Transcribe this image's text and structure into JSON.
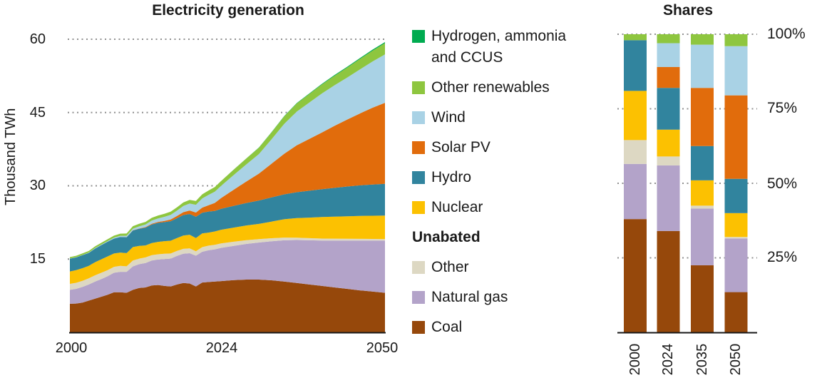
{
  "page": {
    "background": "#ffffff"
  },
  "colors": {
    "coal": "#96480b",
    "natural_gas": "#b3a3c9",
    "other": "#ddd8c3",
    "nuclear": "#fcc101",
    "hydro": "#31849e",
    "solar_pv": "#e16c0c",
    "wind": "#a9d2e5",
    "other_renewables": "#8ec63f",
    "hydrogen": "#00ab50",
    "gridline": "#909090",
    "axis": "#1a1a1a",
    "text": "#1a1a1a"
  },
  "charts": {
    "generation": {
      "title": "Electricity generation",
      "y_axis_label": "Thousand TWh",
      "y_ticks": [
        "60",
        "45",
        "30",
        "15"
      ],
      "x_ticks": [
        "2000",
        "2024",
        "2050"
      ]
    },
    "shares": {
      "title": "Shares",
      "y_ticks": [
        "100%",
        "75%",
        "50%",
        "25%"
      ],
      "x_ticks": [
        "2000",
        "2024",
        "2035",
        "2050"
      ]
    }
  },
  "legend": {
    "items": [
      {
        "label": "Hydrogen, ammonia and CCUS",
        "color": "hydrogen"
      },
      {
        "label": "Other renewables",
        "color": "other_renewables"
      },
      {
        "label": "Wind",
        "color": "wind"
      },
      {
        "label": "Solar PV",
        "color": "solar_pv"
      },
      {
        "label": "Hydro",
        "color": "hydro"
      },
      {
        "label": "Nuclear",
        "color": "nuclear"
      },
      {
        "label": "Unabated",
        "header": true
      },
      {
        "label": "Other",
        "color": "other"
      },
      {
        "label": "Natural gas",
        "color": "natural_gas"
      },
      {
        "label": "Coal",
        "color": "coal"
      }
    ]
  },
  "chart_data": [
    {
      "type": "area",
      "stacked": true,
      "title": "Electricity generation",
      "ylabel": "Thousand TWh",
      "ylim": [
        0,
        60
      ],
      "xlim": [
        2000,
        2050
      ],
      "grid": "dotted-horizontal",
      "x": [
        2000,
        2001,
        2002,
        2003,
        2004,
        2005,
        2006,
        2007,
        2008,
        2009,
        2010,
        2011,
        2012,
        2013,
        2014,
        2015,
        2016,
        2017,
        2018,
        2019,
        2020,
        2021,
        2022,
        2023,
        2024,
        2026,
        2028,
        2030,
        2032,
        2034,
        2036,
        2038,
        2040,
        2042,
        2044,
        2046,
        2048,
        2050
      ],
      "series": [
        {
          "name": "Coal",
          "color": "coal",
          "values": [
            5.85,
            5.9,
            6.1,
            6.5,
            6.9,
            7.3,
            7.7,
            8.2,
            8.2,
            8.1,
            8.7,
            9.1,
            9.2,
            9.6,
            9.7,
            9.5,
            9.4,
            9.8,
            10.1,
            10.0,
            9.4,
            10.2,
            10.3,
            10.4,
            10.5,
            10.7,
            10.8,
            10.8,
            10.65,
            10.4,
            10.1,
            9.8,
            9.5,
            9.2,
            8.9,
            8.6,
            8.35,
            8.1
          ]
        },
        {
          "name": "Natural gas",
          "color": "natural_gas",
          "values": [
            2.85,
            3.0,
            3.2,
            3.3,
            3.5,
            3.6,
            3.8,
            4.0,
            4.2,
            4.3,
            4.8,
            4.85,
            5.0,
            5.1,
            5.2,
            5.5,
            5.7,
            5.85,
            6.0,
            6.2,
            6.3,
            6.3,
            6.5,
            6.6,
            6.8,
            7.0,
            7.3,
            7.6,
            8.0,
            8.45,
            8.8,
            9.05,
            9.3,
            9.6,
            9.9,
            10.2,
            10.45,
            10.7
          ]
        },
        {
          "name": "Other",
          "color": "other",
          "values": [
            1.23,
            1.25,
            1.24,
            1.26,
            1.28,
            1.3,
            1.25,
            1.22,
            1.2,
            1.12,
            1.2,
            1.15,
            1.14,
            1.1,
            1.08,
            1.1,
            1.05,
            1.03,
            1.0,
            0.98,
            0.92,
            0.95,
            0.95,
            0.92,
            0.9,
            0.85,
            0.78,
            0.7,
            0.62,
            0.55,
            0.48,
            0.44,
            0.4,
            0.38,
            0.36,
            0.34,
            0.32,
            0.3
          ]
        },
        {
          "name": "Nuclear",
          "color": "nuclear",
          "values": [
            2.54,
            2.59,
            2.6,
            2.56,
            2.68,
            2.77,
            2.8,
            2.73,
            2.73,
            2.7,
            2.76,
            2.6,
            2.46,
            2.49,
            2.54,
            2.57,
            2.61,
            2.64,
            2.71,
            2.8,
            2.7,
            2.8,
            2.68,
            2.74,
            2.8,
            2.9,
            3.0,
            3.1,
            3.4,
            3.75,
            4.0,
            4.2,
            4.4,
            4.5,
            4.6,
            4.7,
            4.75,
            4.8
          ]
        },
        {
          "name": "Hydro",
          "color": "hydro",
          "values": [
            2.62,
            2.6,
            2.65,
            2.65,
            2.8,
            2.9,
            3.0,
            3.05,
            3.2,
            3.25,
            3.4,
            3.5,
            3.65,
            3.8,
            3.9,
            3.9,
            4.0,
            4.05,
            4.2,
            4.25,
            4.35,
            4.25,
            4.3,
            4.2,
            4.3,
            4.45,
            4.6,
            4.8,
            4.95,
            5.1,
            5.3,
            5.5,
            5.7,
            5.9,
            6.1,
            6.25,
            6.4,
            6.5
          ]
        },
        {
          "name": "Solar PV",
          "color": "solar_pv",
          "values": [
            0,
            0,
            0,
            0,
            0,
            0,
            0,
            0,
            0.01,
            0.02,
            0.03,
            0.06,
            0.1,
            0.14,
            0.2,
            0.25,
            0.33,
            0.45,
            0.59,
            0.72,
            0.85,
            1.04,
            1.3,
            1.63,
            2.2,
            3.3,
            4.4,
            5.5,
            6.9,
            8.3,
            9.6,
            10.6,
            11.6,
            12.7,
            13.7,
            14.7,
            15.7,
            16.6
          ]
        },
        {
          "name": "Wind",
          "color": "wind",
          "values": [
            0.03,
            0.04,
            0.05,
            0.06,
            0.09,
            0.1,
            0.13,
            0.17,
            0.22,
            0.28,
            0.34,
            0.44,
            0.52,
            0.64,
            0.71,
            0.83,
            0.96,
            1.1,
            1.27,
            1.42,
            1.6,
            1.86,
            2.1,
            2.3,
            2.5,
            3.0,
            3.5,
            4.0,
            5.0,
            6.1,
            6.9,
            7.45,
            8.0,
            8.3,
            8.6,
            9.0,
            9.45,
            9.9
          ]
        },
        {
          "name": "Other renewables",
          "color": "other_renewables",
          "values": [
            0.28,
            0.3,
            0.32,
            0.33,
            0.35,
            0.37,
            0.39,
            0.42,
            0.44,
            0.47,
            0.5,
            0.52,
            0.55,
            0.58,
            0.6,
            0.62,
            0.65,
            0.68,
            0.72,
            0.75,
            0.78,
            0.85,
            0.9,
            0.95,
            1.0,
            1.1,
            1.2,
            1.3,
            1.42,
            1.55,
            1.66,
            1.76,
            1.85,
            1.95,
            2.04,
            2.13,
            2.22,
            2.3
          ]
        },
        {
          "name": "Hydrogen, ammonia and CCUS",
          "color": "hydrogen",
          "values": [
            0,
            0,
            0,
            0,
            0,
            0,
            0,
            0,
            0,
            0,
            0,
            0,
            0,
            0,
            0,
            0,
            0,
            0,
            0,
            0,
            0,
            0,
            0,
            0,
            0,
            0.01,
            0.02,
            0.04,
            0.05,
            0.07,
            0.09,
            0.11,
            0.13,
            0.15,
            0.17,
            0.19,
            0.2,
            0.22
          ]
        }
      ]
    },
    {
      "type": "bar",
      "stacked": true,
      "title": "Shares",
      "categories": [
        "2000",
        "2024",
        "2035",
        "2050"
      ],
      "ylim": [
        0,
        100
      ],
      "unit": "%",
      "grid": "dotted-horizontal",
      "legend_position": "none",
      "series": [
        {
          "name": "Coal",
          "color": "coal",
          "values": [
            38.0,
            34.0,
            22.5,
            13.5
          ]
        },
        {
          "name": "Natural gas",
          "color": "natural_gas",
          "values": [
            18.5,
            22.0,
            19.0,
            18.0
          ]
        },
        {
          "name": "Other",
          "color": "other",
          "values": [
            8.0,
            3.0,
            1.0,
            0.5
          ]
        },
        {
          "name": "Nuclear",
          "color": "nuclear",
          "values": [
            16.5,
            9.0,
            8.5,
            8.0
          ]
        },
        {
          "name": "Hydro",
          "color": "hydro",
          "values": [
            17.0,
            14.0,
            11.5,
            11.5
          ]
        },
        {
          "name": "Solar PV",
          "color": "solar_pv",
          "values": [
            0,
            7.0,
            19.5,
            28.0
          ]
        },
        {
          "name": "Wind",
          "color": "wind",
          "values": [
            0,
            8.0,
            14.5,
            16.5
          ]
        },
        {
          "name": "Other renewables",
          "color": "other_renewables",
          "values": [
            2.0,
            3.0,
            3.5,
            4.0
          ]
        },
        {
          "name": "Hydrogen, ammonia and CCUS",
          "color": "hydrogen",
          "values": [
            0,
            0,
            0,
            0
          ]
        }
      ]
    }
  ]
}
